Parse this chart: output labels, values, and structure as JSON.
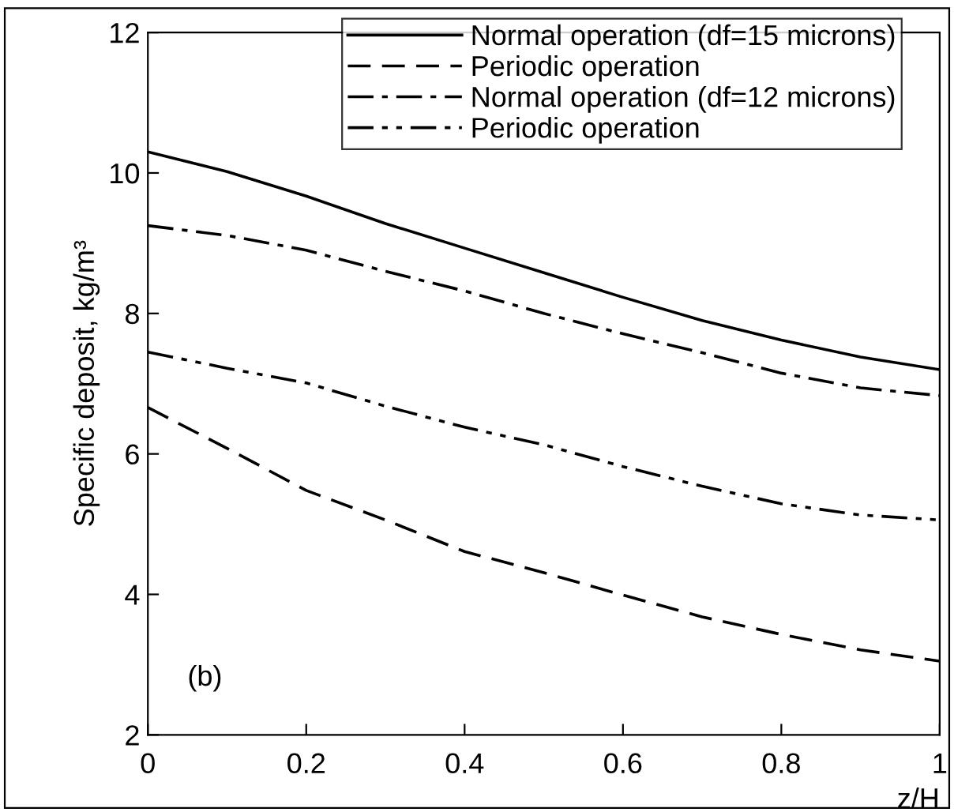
{
  "chart_data": {
    "type": "line",
    "xlabel": "z/H",
    "ylabel": "Specific deposit, kg/m³",
    "annotations": [
      "(b)"
    ],
    "x": [
      0,
      0.1,
      0.2,
      0.3,
      0.4,
      0.5,
      0.6,
      0.7,
      0.8,
      0.9,
      1.0
    ],
    "xlim": [
      0,
      1
    ],
    "ylim": [
      2,
      12
    ],
    "xticks": [
      0,
      0.2,
      0.4,
      0.6,
      0.8,
      1
    ],
    "yticks": [
      2,
      4,
      6,
      8,
      10,
      12
    ],
    "grid": false,
    "legend": "top right",
    "marker": "none",
    "series": [
      {
        "name": "Normal operation (df=15 microns)",
        "color": "#000000",
        "line_style": "solid",
        "values": [
          10.3,
          10.02,
          9.67,
          9.28,
          8.93,
          8.58,
          8.23,
          7.9,
          7.62,
          7.38,
          7.2
        ]
      },
      {
        "name": "Periodic operation",
        "color": "#000000",
        "line_style": "dashed",
        "values": [
          6.66,
          6.08,
          5.48,
          5.06,
          4.61,
          4.31,
          3.99,
          3.68,
          3.43,
          3.21,
          3.05
        ]
      },
      {
        "name": "Normal operation (df=12 microns)",
        "color": "#000000",
        "line_style": "dashdot",
        "values": [
          9.25,
          9.11,
          8.9,
          8.6,
          8.32,
          8.0,
          7.71,
          7.44,
          7.15,
          6.94,
          6.83
        ]
      },
      {
        "name": "Periodic operation",
        "color": "#000000",
        "line_style": "dashdotdot",
        "values": [
          7.45,
          7.22,
          7.01,
          6.68,
          6.38,
          6.13,
          5.82,
          5.54,
          5.29,
          5.13,
          5.06
        ]
      }
    ]
  }
}
